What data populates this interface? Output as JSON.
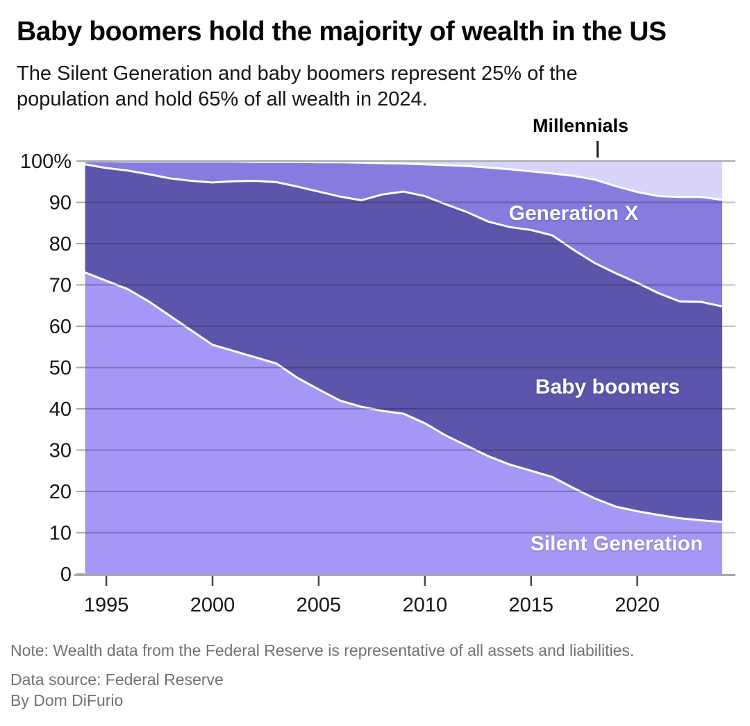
{
  "header": {
    "title": "Baby boomers hold the majority of wealth in the US",
    "subtitle": "The Silent Generation and baby boomers represent 25% of the population and hold 65% of all wealth in 2024."
  },
  "annotation": {
    "label": "Millennials"
  },
  "chart_data": {
    "type": "area",
    "stacked": true,
    "percent_of_total": true,
    "grid": true,
    "x": [
      1994,
      1995,
      1996,
      1997,
      1998,
      1999,
      2000,
      2001,
      2002,
      2003,
      2004,
      2005,
      2006,
      2007,
      2008,
      2009,
      2010,
      2011,
      2012,
      2013,
      2014,
      2015,
      2016,
      2017,
      2018,
      2019,
      2020,
      2021,
      2022,
      2023,
      2024
    ],
    "x_ticks": [
      1995,
      2000,
      2005,
      2010,
      2015,
      2020
    ],
    "ylim": [
      0,
      100
    ],
    "y_ticks": [
      0,
      10,
      20,
      30,
      40,
      50,
      60,
      70,
      80,
      90,
      100
    ],
    "y_top_tick_label": "100%",
    "series": [
      {
        "name": "Silent Generation",
        "color": "#a497f6",
        "values": [
          73.0,
          71.0,
          69.0,
          66.0,
          62.5,
          59.0,
          55.5,
          54.0,
          52.5,
          51.0,
          47.5,
          44.7,
          42.0,
          40.5,
          39.5,
          38.8,
          36.5,
          33.5,
          31.0,
          28.5,
          26.5,
          25.0,
          23.5,
          20.8,
          18.3,
          16.3,
          15.2,
          14.3,
          13.5,
          13.0,
          12.6
        ]
      },
      {
        "name": "Baby boomers",
        "color": "#5c55ac",
        "values": [
          26.2,
          27.3,
          28.7,
          30.8,
          33.3,
          36.2,
          39.3,
          41.1,
          42.7,
          43.9,
          46.3,
          47.9,
          49.4,
          50.0,
          52.4,
          53.8,
          55.0,
          56.0,
          56.6,
          56.8,
          57.5,
          58.3,
          58.5,
          57.7,
          57.0,
          56.5,
          55.3,
          53.7,
          52.5,
          52.9,
          52.2
        ]
      },
      {
        "name": "Generation X",
        "color": "#877be0",
        "values": [
          0.8,
          1.7,
          2.2,
          3.1,
          4.1,
          4.7,
          5.1,
          4.8,
          4.6,
          4.9,
          6.0,
          7.1,
          8.3,
          9.1,
          7.6,
          6.8,
          7.7,
          9.5,
          11.2,
          13.1,
          14.0,
          14.2,
          15.0,
          17.9,
          20.2,
          21.1,
          22.0,
          23.5,
          25.3,
          25.4,
          25.8
        ]
      },
      {
        "name": "Millennials",
        "color": "#d8d3f8",
        "values": [
          0.0,
          0.0,
          0.1,
          0.1,
          0.1,
          0.1,
          0.1,
          0.1,
          0.2,
          0.2,
          0.2,
          0.3,
          0.3,
          0.4,
          0.5,
          0.6,
          0.8,
          1.0,
          1.2,
          1.6,
          2.0,
          2.5,
          3.0,
          3.6,
          4.5,
          6.1,
          7.5,
          8.5,
          8.7,
          8.7,
          9.4
        ]
      }
    ]
  },
  "footer": {
    "note": "Note: Wealth data from the Federal Reserve is representative of all assets and liabilities.",
    "source": "Data source: Federal Reserve",
    "byline": "By Dom DiFurio"
  }
}
